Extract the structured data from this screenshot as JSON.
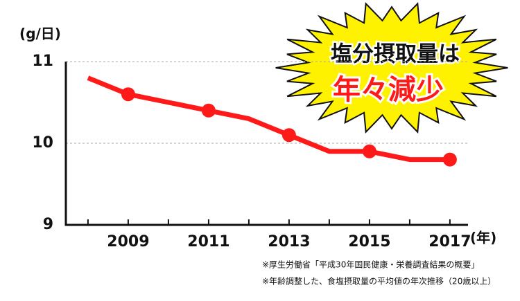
{
  "chart_data": {
    "type": "line",
    "y_unit": "(g/日)",
    "x_unit": "(年)",
    "annotation": {
      "line1": "塩分摂取量は",
      "line2": "年々減少"
    },
    "notes": [
      "※厚生労働省「平成30年国民健康・栄養調査結果の概要」",
      "※年齢調整した、食塩摂取量の平均値の年次推移（20歳以上）"
    ],
    "x": [
      2008,
      2009,
      2010,
      2011,
      2012,
      2013,
      2014,
      2015,
      2016,
      2017
    ],
    "series": [
      {
        "name": "食塩摂取量",
        "color": "#ff1a1a",
        "values": [
          10.8,
          10.6,
          10.5,
          10.4,
          10.3,
          10.1,
          9.9,
          9.9,
          9.8,
          9.8
        ]
      }
    ],
    "xlim": [
      2007.45,
      2017.45
    ],
    "xticks": [
      2009,
      2011,
      2013,
      2015,
      2017
    ],
    "minor_xticks": [
      2008,
      2010,
      2012,
      2014,
      2016
    ],
    "ylim": [
      9,
      11
    ],
    "yticks": [
      9,
      10,
      11
    ],
    "grid": true
  }
}
